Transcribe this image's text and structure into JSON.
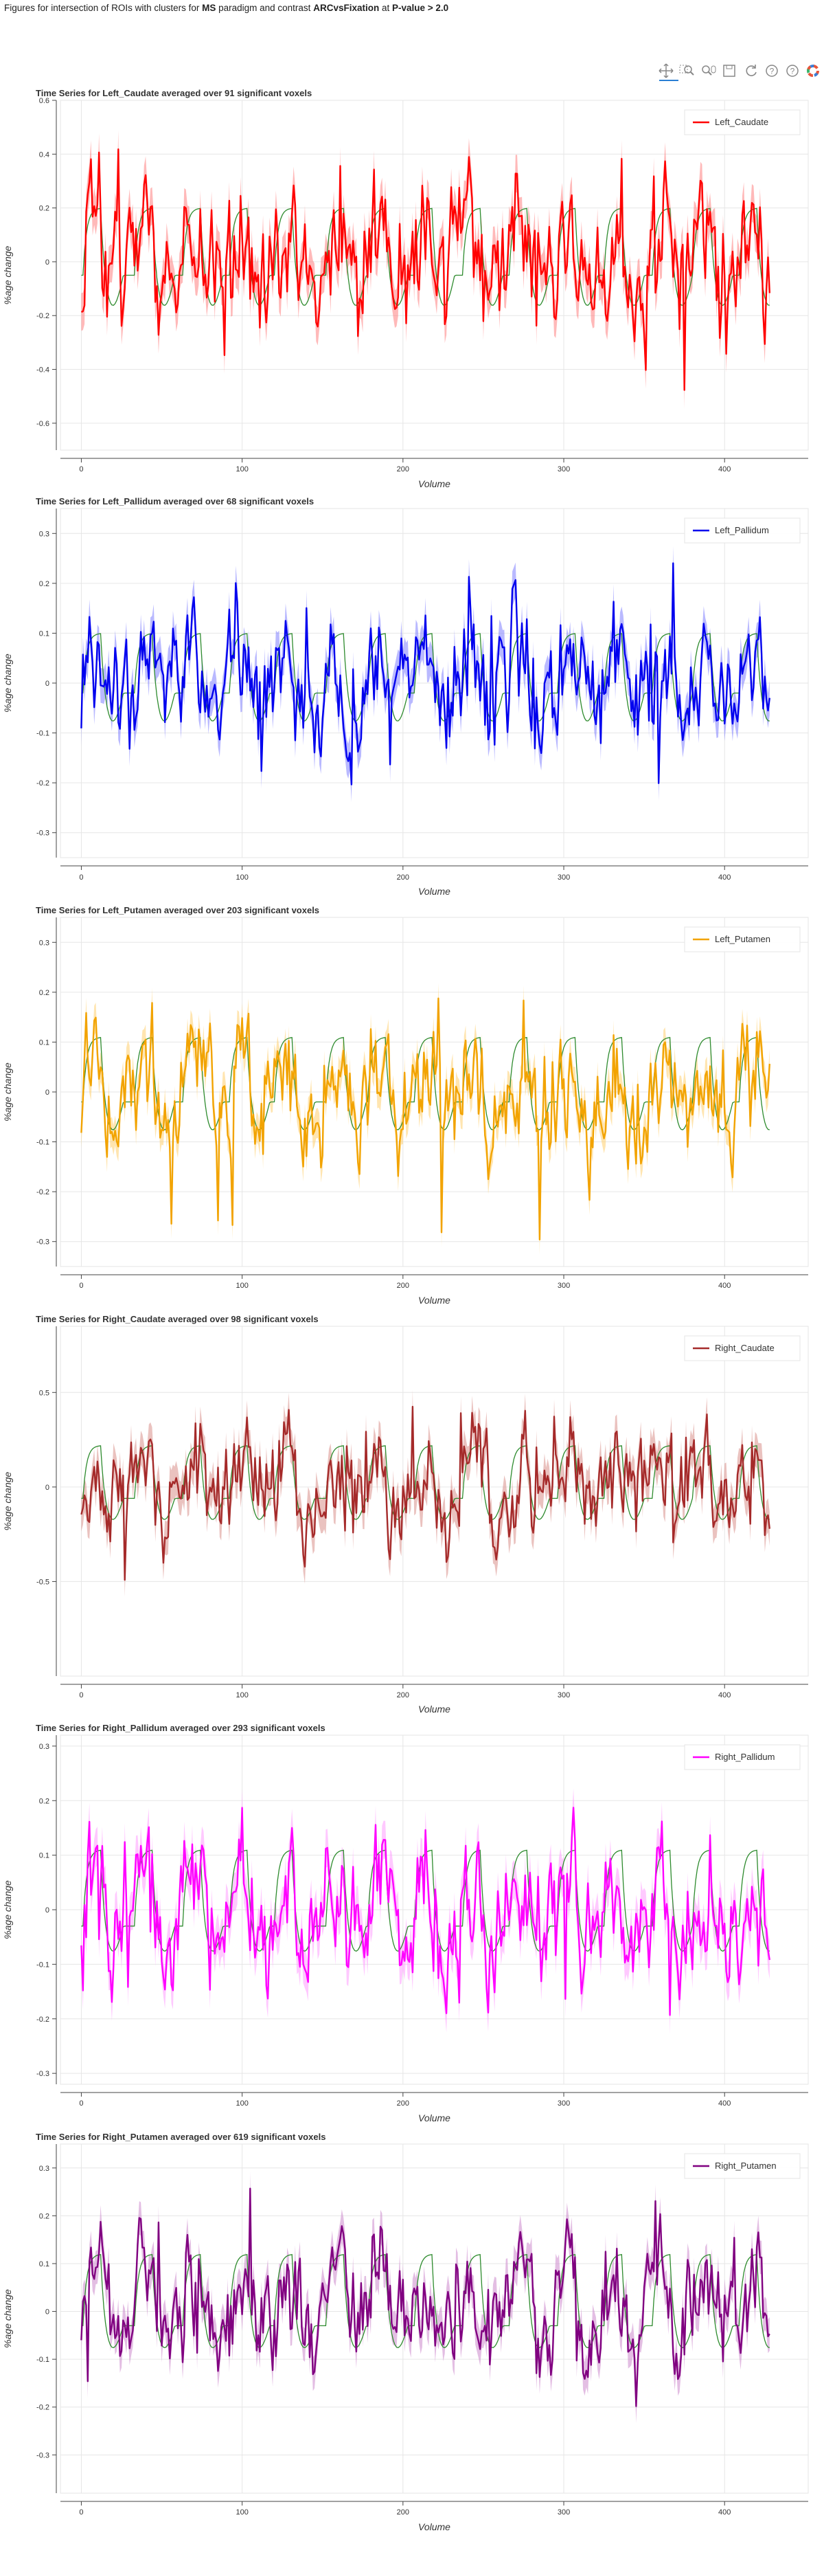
{
  "page": {
    "title_parts": [
      {
        "text": "Figures for intersection of ROIs with clusters for ",
        "bold": false
      },
      {
        "text": "MS",
        "bold": true
      },
      {
        "text": " paradigm and contrast ",
        "bold": false
      },
      {
        "text": "ARCvsFixation",
        "bold": true
      },
      {
        "text": " at ",
        "bold": false
      },
      {
        "text": "P-value > 2.0",
        "bold": true
      }
    ]
  },
  "toolbar": {
    "tools": [
      {
        "name": "pan-icon",
        "label": "Pan"
      },
      {
        "name": "box-zoom-icon",
        "label": "Box Zoom"
      },
      {
        "name": "wheel-zoom-icon",
        "label": "Wheel Zoom"
      },
      {
        "name": "save-icon",
        "label": "Save"
      },
      {
        "name": "reset-icon",
        "label": "Reset"
      },
      {
        "name": "help-icon",
        "label": "Help"
      },
      {
        "name": "hover-icon",
        "label": "Hover"
      },
      {
        "name": "bokeh-logo-icon",
        "label": "Bokeh"
      }
    ]
  },
  "chart_data": [
    {
      "type": "line",
      "title": "Time Series for Left_Caudate averaged over 91 significant voxels",
      "xlabel": "Volume",
      "ylabel": "%age change",
      "xlim": [
        -13,
        452
      ],
      "ylim": [
        -0.7,
        0.6
      ],
      "x_ticks": [
        0,
        100,
        200,
        300,
        400
      ],
      "y_ticks": [
        -0.6,
        -0.4,
        -0.2,
        0,
        0.2,
        0.4,
        0.6
      ],
      "grid": true,
      "legend_position": "top-right",
      "series": [
        {
          "name": "Left_Caudate",
          "color": "#ff0000",
          "band_color": "#ff8080",
          "amplitude": 0.14,
          "band": 0.07,
          "seed": 11
        },
        {
          "name": "",
          "color": "#2e8b2e",
          "role": "model",
          "high": 0.2,
          "low": -0.05,
          "undershoot": 0.12
        }
      ]
    },
    {
      "type": "line",
      "title": "Time Series for Left_Pallidum averaged over 68 significant voxels",
      "xlabel": "Volume",
      "ylabel": "%age change",
      "xlim": [
        -13,
        452
      ],
      "ylim": [
        -0.35,
        0.35
      ],
      "x_ticks": [
        0,
        100,
        200,
        300,
        400
      ],
      "y_ticks": [
        -0.3,
        -0.2,
        -0.1,
        0,
        0.1,
        0.2,
        0.3
      ],
      "grid": true,
      "legend_position": "top-right",
      "series": [
        {
          "name": "Left_Pallidum",
          "color": "#0000ee",
          "band_color": "#8080ff",
          "amplitude": 0.07,
          "band": 0.035,
          "seed": 23
        },
        {
          "name": "",
          "color": "#2e8b2e",
          "role": "model",
          "high": 0.1,
          "low": -0.02,
          "undershoot": 0.06
        }
      ]
    },
    {
      "type": "line",
      "title": "Time Series for Left_Putamen averaged over 203 significant voxels",
      "xlabel": "Volume",
      "ylabel": "%age change",
      "xlim": [
        -13,
        452
      ],
      "ylim": [
        -0.35,
        0.35
      ],
      "x_ticks": [
        0,
        100,
        200,
        300,
        400
      ],
      "y_ticks": [
        -0.3,
        -0.2,
        -0.1,
        0,
        0.1,
        0.2,
        0.3
      ],
      "grid": true,
      "legend_position": "top-right",
      "series": [
        {
          "name": "Left_Putamen",
          "color": "#f2a300",
          "band_color": "#ffcf70",
          "amplitude": 0.07,
          "band": 0.03,
          "seed": 37
        },
        {
          "name": "",
          "color": "#2e8b2e",
          "role": "model",
          "high": 0.11,
          "low": -0.02,
          "undershoot": 0.06
        }
      ]
    },
    {
      "type": "line",
      "title": "Time Series for Right_Caudate averaged over 98 significant voxels",
      "xlabel": "Volume",
      "ylabel": "%age change",
      "xlim": [
        -13,
        452
      ],
      "ylim": [
        -1.0,
        0.85
      ],
      "x_ticks": [
        0,
        100,
        200,
        300,
        400
      ],
      "y_ticks": [
        -0.5,
        0,
        0.5
      ],
      "grid": true,
      "legend_position": "top-right",
      "series": [
        {
          "name": "Right_Caudate",
          "color": "#a52a2a",
          "band_color": "#d9908a",
          "amplitude": 0.15,
          "band": 0.09,
          "seed": 41
        },
        {
          "name": "",
          "color": "#2e8b2e",
          "role": "model",
          "high": 0.22,
          "low": -0.06,
          "undershoot": 0.12
        }
      ]
    },
    {
      "type": "line",
      "title": "Time Series for Right_Pallidum averaged over 293 significant voxels",
      "xlabel": "Volume",
      "ylabel": "%age change",
      "xlim": [
        -13,
        452
      ],
      "ylim": [
        -0.32,
        0.32
      ],
      "x_ticks": [
        0,
        100,
        200,
        300,
        400
      ],
      "y_ticks": [
        -0.3,
        -0.2,
        -0.1,
        0,
        0.1,
        0.2,
        0.3
      ],
      "grid": true,
      "legend_position": "top-right",
      "series": [
        {
          "name": "Right_Pallidum",
          "color": "#ff00ff",
          "band_color": "#ff9cff",
          "amplitude": 0.065,
          "band": 0.035,
          "seed": 53
        },
        {
          "name": "",
          "color": "#2e8b2e",
          "role": "model",
          "high": 0.11,
          "low": -0.03,
          "undershoot": 0.05
        }
      ]
    },
    {
      "type": "line",
      "title": "Time Series for Right_Putamen averaged over 619 significant voxels",
      "xlabel": "Volume",
      "ylabel": "%age change",
      "xlim": [
        -13,
        452
      ],
      "ylim": [
        -0.38,
        0.35
      ],
      "x_ticks": [
        0,
        100,
        200,
        300,
        400
      ],
      "y_ticks": [
        -0.3,
        -0.2,
        -0.1,
        0,
        0.1,
        0.2,
        0.3
      ],
      "grid": true,
      "legend_position": "top-right",
      "series": [
        {
          "name": "Right_Putamen",
          "color": "#800080",
          "band_color": "#cc88cc",
          "amplitude": 0.07,
          "band": 0.035,
          "seed": 67
        },
        {
          "name": "",
          "color": "#2e8b2e",
          "role": "model",
          "high": 0.12,
          "low": -0.03,
          "undershoot": 0.05
        }
      ]
    }
  ]
}
